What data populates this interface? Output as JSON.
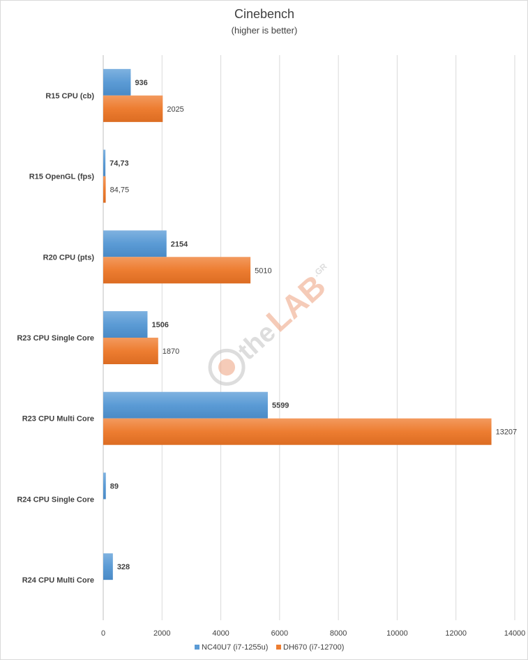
{
  "chart_data": {
    "type": "bar",
    "orientation": "horizontal",
    "title": "Cinebench",
    "subtitle": "(higher is better)",
    "categories": [
      "R15 CPU (cb)",
      "R15 OpenGL (fps)",
      "R20 CPU (pts)",
      "R23 CPU Single Core",
      "R23 CPU Multi Core",
      "R24 CPU Single Core",
      "R24 CPU Multi Core"
    ],
    "series": [
      {
        "name": "NC40U7 (i7-1255u)",
        "color": "#5b9bd5",
        "values": [
          936,
          74.73,
          2154,
          1506,
          5599,
          89,
          328
        ],
        "labels": [
          "936",
          "74,73",
          "2154",
          "1506",
          "5599",
          "89",
          "328"
        ]
      },
      {
        "name": "DH670 (i7-12700)",
        "color": "#ed7d31",
        "values": [
          2025,
          84.75,
          5010,
          1870,
          13207,
          null,
          null
        ],
        "labels": [
          "2025",
          "84,75",
          "5010",
          "1870",
          "13207",
          "",
          ""
        ]
      }
    ],
    "xlim": [
      0,
      14000
    ],
    "xticks": [
      0,
      2000,
      4000,
      6000,
      8000,
      10000,
      12000,
      14000
    ],
    "xtick_labels": [
      "0",
      "2000",
      "4000",
      "6000",
      "8000",
      "10000",
      "12000",
      "14000"
    ],
    "grid": "vertical",
    "legend": "bottom"
  },
  "watermark": {
    "text_small": "the",
    "text_big": "LAB",
    "text_suffix": ".GR",
    "color": "#c8c8c8"
  }
}
